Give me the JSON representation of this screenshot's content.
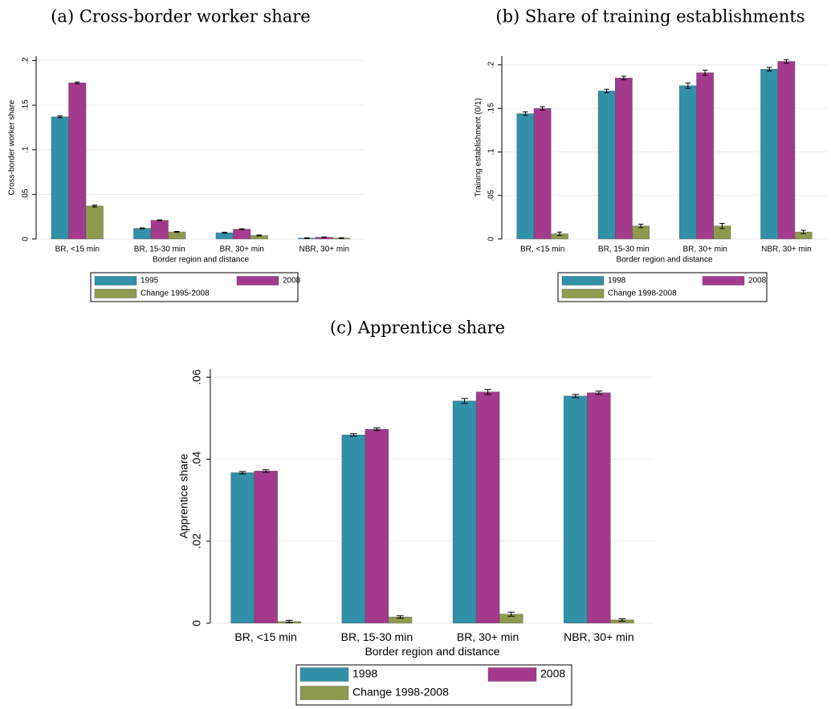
{
  "chart_data": [
    {
      "type": "bar",
      "title": "(a) Cross-border worker share",
      "ylabel": "Cross-border worker share",
      "xlabel": "Border region and distance",
      "categories": [
        "BR, <15 min",
        "BR, 15-30 min",
        "BR, 30+ min",
        "NBR, 30+ min"
      ],
      "series": [
        {
          "name": "1995",
          "color": "#3291a8",
          "values": [
            0.137,
            0.012,
            0.007,
            0.001
          ],
          "errors": [
            0.001,
            0.0005,
            0.0005,
            0.0003
          ]
        },
        {
          "name": "2008",
          "color": "#a33a8e",
          "values": [
            0.175,
            0.021,
            0.011,
            0.002
          ],
          "errors": [
            0.001,
            0.0005,
            0.0005,
            0.0003
          ]
        },
        {
          "name": "Change 1995-2008",
          "color": "#8e9a4d",
          "values": [
            0.037,
            0.008,
            0.004,
            0.001
          ],
          "errors": [
            0.001,
            0.0005,
            0.0005,
            0.0003
          ]
        }
      ],
      "ylim": [
        0,
        0.205
      ],
      "yticks": [
        0,
        {
          "value": 0.05,
          "label": ".05"
        },
        {
          "value": 0.1,
          "label": ".1"
        },
        {
          "value": 0.15,
          "label": ".15"
        },
        {
          "value": 0.2,
          "label": ".2"
        }
      ],
      "grid": true
    },
    {
      "type": "bar",
      "title": "(b) Share of training establishments",
      "ylabel": "Training establishment (0/1)",
      "xlabel": "Border region and distance",
      "categories": [
        "BR, <15 min",
        "BR, 15-30 min",
        "BR, 30+ min",
        "NBR, 30+ min"
      ],
      "series": [
        {
          "name": "1998",
          "color": "#3291a8",
          "values": [
            0.144,
            0.17,
            0.176,
            0.195
          ],
          "errors": [
            0.002,
            0.002,
            0.003,
            0.002
          ]
        },
        {
          "name": "2008",
          "color": "#a33a8e",
          "values": [
            0.15,
            0.185,
            0.191,
            0.204
          ],
          "errors": [
            0.002,
            0.002,
            0.003,
            0.002
          ]
        },
        {
          "name": "Change 1998-2008",
          "color": "#8e9a4d",
          "values": [
            0.006,
            0.015,
            0.015,
            0.008
          ],
          "errors": [
            0.002,
            0.002,
            0.003,
            0.002
          ]
        }
      ],
      "ylim": [
        0,
        0.21
      ],
      "yticks": [
        0,
        {
          "value": 0.05,
          "label": ".05"
        },
        {
          "value": 0.1,
          "label": ".1"
        },
        {
          "value": 0.15,
          "label": ".15"
        },
        {
          "value": 0.2,
          "label": ".2"
        }
      ],
      "grid": true
    },
    {
      "type": "bar",
      "title": "(c) Apprentice share",
      "ylabel": "Apprentice share",
      "xlabel": "Border region and distance",
      "categories": [
        "BR, <15 min",
        "BR, 15-30 min",
        "BR, 30+ min",
        "NBR, 30+ min"
      ],
      "series": [
        {
          "name": "1998",
          "color": "#3291a8",
          "values": [
            0.0367,
            0.0459,
            0.0542,
            0.0554
          ],
          "errors": [
            0.0003,
            0.0003,
            0.0006,
            0.0004
          ]
        },
        {
          "name": "2008",
          "color": "#a33a8e",
          "values": [
            0.0371,
            0.0473,
            0.0564,
            0.0562
          ],
          "errors": [
            0.0003,
            0.0003,
            0.0006,
            0.0004
          ]
        },
        {
          "name": "Change 1998-2008",
          "color": "#8e9a4d",
          "values": [
            0.0004,
            0.0015,
            0.0022,
            0.0008
          ],
          "errors": [
            0.0003,
            0.0003,
            0.0005,
            0.0003
          ]
        }
      ],
      "ylim": [
        0,
        0.062
      ],
      "yticks": [
        0,
        {
          "value": 0.02,
          "label": ".02"
        },
        {
          "value": 0.04,
          "label": ".04"
        },
        {
          "value": 0.06,
          "label": ".06"
        }
      ],
      "grid": true
    }
  ]
}
